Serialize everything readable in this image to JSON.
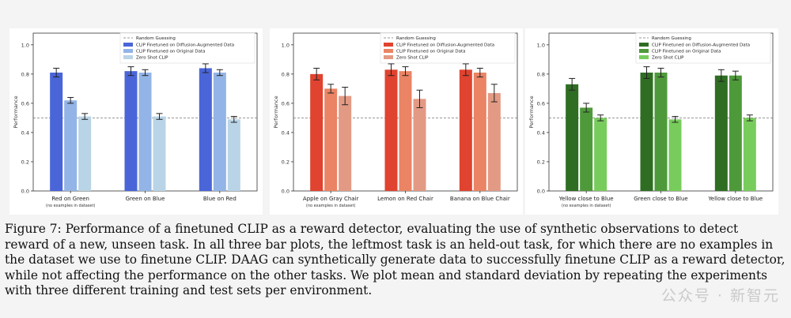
{
  "chart_data": [
    {
      "type": "bar",
      "ylabel": "Performance",
      "ylim": [
        0.0,
        1.08
      ],
      "yticks": [
        "0.0",
        "0.2",
        "0.4",
        "0.6",
        "0.8",
        "1.0"
      ],
      "random_guess": 0.5,
      "random_label": "Random Guessing",
      "categories": [
        "Red on Green",
        "Green on Blue",
        "Blue on Red"
      ],
      "held_out_note": "(no examples in dataset)",
      "series": [
        {
          "name": "CLIP Finetuned on Diffusion-Augmented Data",
          "color": "#4a65d8",
          "values": [
            0.81,
            0.82,
            0.84
          ],
          "errors": [
            0.03,
            0.03,
            0.03
          ]
        },
        {
          "name": "CLIP Finetuned on Original Data",
          "color": "#93b4e6",
          "values": [
            0.62,
            0.81,
            0.81
          ],
          "errors": [
            0.02,
            0.02,
            0.02
          ]
        },
        {
          "name": "Zero Shot CLIP",
          "color": "#b9d4e6",
          "values": [
            0.51,
            0.51,
            0.49
          ],
          "errors": [
            0.02,
            0.02,
            0.02
          ]
        }
      ]
    },
    {
      "type": "bar",
      "ylabel": "Performance",
      "ylim": [
        0.0,
        1.08
      ],
      "yticks": [
        "0.0",
        "0.2",
        "0.4",
        "0.6",
        "0.8",
        "1.0"
      ],
      "random_guess": 0.5,
      "random_label": "Random Guessing",
      "categories": [
        "Apple on Gray Chair",
        "Lemon on Red Chair",
        "Banana on Blue Chair"
      ],
      "held_out_note": "(no examples in dataset)",
      "series": [
        {
          "name": "CLIP Finetuned on Diffusion-Augmented Data",
          "color": "#e0432f",
          "values": [
            0.8,
            0.83,
            0.83
          ],
          "errors": [
            0.04,
            0.04,
            0.04
          ]
        },
        {
          "name": "CLIP Finetuned on Original Data",
          "color": "#ea8464",
          "values": [
            0.7,
            0.82,
            0.81
          ],
          "errors": [
            0.03,
            0.03,
            0.03
          ]
        },
        {
          "name": "Zero Shot CLIP",
          "color": "#e39a84",
          "values": [
            0.65,
            0.63,
            0.67
          ],
          "errors": [
            0.06,
            0.06,
            0.06
          ]
        }
      ]
    },
    {
      "type": "bar",
      "ylabel": "Performance",
      "ylim": [
        0.0,
        1.08
      ],
      "yticks": [
        "0.0",
        "0.2",
        "0.4",
        "0.6",
        "0.8",
        "1.0"
      ],
      "random_guess": 0.5,
      "random_label": "Random Guessing",
      "categories": [
        "Yellow close to Blue",
        "Green close to Blue",
        "Yellow close to Blue"
      ],
      "held_out_note": "(no examples in dataset)",
      "series": [
        {
          "name": "CLIP Finetuned on Diffusion-Augmented Data",
          "color": "#2f6d23",
          "values": [
            0.73,
            0.81,
            0.79
          ],
          "errors": [
            0.04,
            0.04,
            0.04
          ]
        },
        {
          "name": "CLIP Finetuned on Original Data",
          "color": "#4e9a3a",
          "values": [
            0.57,
            0.81,
            0.79
          ],
          "errors": [
            0.03,
            0.03,
            0.03
          ]
        },
        {
          "name": "Zero Shot CLIP",
          "color": "#78cc5c",
          "values": [
            0.5,
            0.49,
            0.5
          ],
          "errors": [
            0.02,
            0.02,
            0.02
          ]
        }
      ]
    }
  ],
  "caption": "Figure 7: Performance of a finetuned CLIP as a reward detector, evaluating the use of synthetic observations to detect reward of a new, unseen task. In all three bar plots, the leftmost task is an held-out task, for which there are no examples in the dataset we use to finetune CLIP. DAAG can synthetically generate data to successfully finetune CLIP as a reward detector, while not affecting the performance on the other tasks. We plot mean and standard deviation by repeating the experiments with three different training and test sets per environment.",
  "watermark": "公众号 · 新智元"
}
